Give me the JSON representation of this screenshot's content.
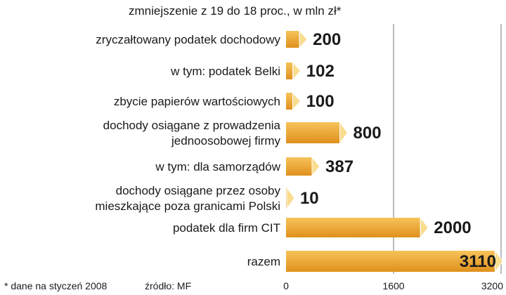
{
  "chart_data": {
    "type": "bar",
    "orientation": "horizontal",
    "subtitle": "zmniejszenie z 19 do 18 proc., w mln zł*",
    "categories": [
      [
        "zryczałtowany podatek dochodowy"
      ],
      [
        "w tym:  podatek Belki"
      ],
      [
        "zbycie papierów wartościowych"
      ],
      [
        "dochody osiągane z prowadzenia",
        "jednoosobowej firmy"
      ],
      [
        "w tym:  dla samorządów"
      ],
      [
        "dochody osiągane przez osoby",
        "mieszkające poza granicami Polski"
      ],
      [
        "podatek dla firm CIT"
      ],
      [
        "razem"
      ]
    ],
    "values": [
      200,
      102,
      100,
      800,
      387,
      10,
      2000,
      3110
    ],
    "value_labels": [
      "200",
      "102",
      "100",
      "800",
      "387",
      "10",
      "2000",
      "3110"
    ],
    "xlim": [
      0,
      3200
    ],
    "xticks": [
      0,
      1600,
      3200
    ],
    "xtick_labels": [
      "0",
      "1600",
      "3200"
    ],
    "grid": true,
    "colors": {
      "bar_top": "#f6c35a",
      "bar_bottom": "#e0901c",
      "bar_cap": "#f9dc8e",
      "bar_edge": "#ffffff"
    }
  },
  "footnote": "* dane na styczeń 2008",
  "source": "źródło: MF"
}
